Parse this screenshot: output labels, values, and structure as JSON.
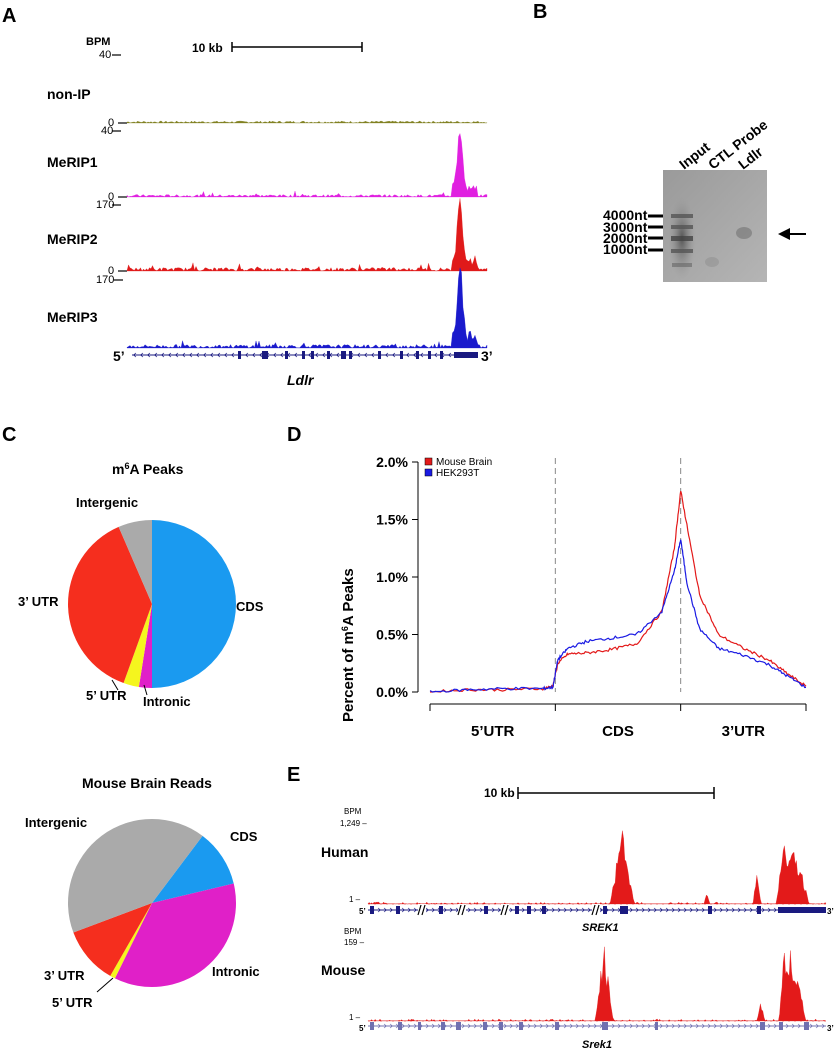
{
  "panels": {
    "A": {
      "letter": "A",
      "bpm_label": "BPM",
      "scale_label": "10 kb",
      "tracks": [
        {
          "name": "non-IP",
          "max": "40",
          "zero": "0",
          "color": "#808020"
        },
        {
          "name": "MeRIP1",
          "max": "40",
          "zero": "0",
          "color": "#e020e0"
        },
        {
          "name": "MeRIP2",
          "max": "170",
          "zero": "0",
          "color": "#e01a1a"
        },
        {
          "name": "MeRIP3",
          "max": "170",
          "zero": "0",
          "color": "#1a1acc"
        }
      ],
      "five_prime": "5’",
      "three_prime": "3’",
      "gene": "Ldlr"
    },
    "B": {
      "letter": "B",
      "lanes": [
        "Input",
        "CTL Probe",
        "Ldlr"
      ],
      "markers": [
        "4000nt",
        "3000nt",
        "2000nt",
        "1000nt"
      ]
    },
    "C": {
      "letter": "C",
      "pies": [
        {
          "title_prefix": "m",
          "title_sup": "6",
          "title_suffix": "A Peaks",
          "slices": [
            {
              "label": "CDS",
              "value": 50,
              "color": "#1a9af0"
            },
            {
              "label": "Intronic",
              "value": 2.5,
              "color": "#e020c8"
            },
            {
              "label": "5’ UTR",
              "value": 3,
              "color": "#f5f51e"
            },
            {
              "label": "3’ UTR",
              "value": 38,
              "color": "#f52e1e"
            },
            {
              "label": "Intergenic",
              "value": 6.5,
              "color": "#aaaaaa"
            }
          ]
        },
        {
          "title": "Mouse Brain Reads",
          "slices": [
            {
              "label": "CDS",
              "value": 11,
              "color": "#1a9af0"
            },
            {
              "label": "Intronic",
              "value": 36,
              "color": "#e020c8"
            },
            {
              "label": "5’ UTR",
              "value": 1,
              "color": "#f5f51e"
            },
            {
              "label": "3’ UTR",
              "value": 11,
              "color": "#f52e1e"
            },
            {
              "label": "Intergenic",
              "value": 41,
              "color": "#aaaaaa"
            }
          ]
        }
      ]
    },
    "D": {
      "letter": "D",
      "ylabel_prefix": "Percent of m",
      "ylabel_sup": "6",
      "ylabel_suffix": "A Peaks"
    },
    "E": {
      "letter": "E",
      "scale_label": "10 kb",
      "tracks": [
        {
          "species": "Human",
          "bpm": "BPM",
          "max": "1,249 –",
          "one": "1 –",
          "gene": "SREK1"
        },
        {
          "species": "Mouse",
          "bpm": "BPM",
          "max": "159 –",
          "one": "1 –",
          "gene": "Srek1"
        }
      ],
      "five_prime": "5’",
      "three_prime": "3’"
    }
  },
  "chart_data": {
    "type": "line",
    "title": "",
    "xlabel": "",
    "ylabel": "Percent of m6A Peaks",
    "ylim": [
      0,
      2.0
    ],
    "yticks": [
      "0.0%",
      "0.5%",
      "1.0%",
      "1.5%",
      "2.0%"
    ],
    "regions": [
      "5’UTR",
      "CDS",
      "3’UTR"
    ],
    "region_boundaries": [
      1,
      2
    ],
    "xlim": [
      0,
      3
    ],
    "grid": false,
    "legend_position": "top-left",
    "series": [
      {
        "name": "Mouse Brain",
        "color": "#e31a1a",
        "x": [
          0,
          0.3,
          0.6,
          0.9,
          0.98,
          1.02,
          1.1,
          1.25,
          1.45,
          1.65,
          1.85,
          1.95,
          2.0,
          2.05,
          2.15,
          2.3,
          2.5,
          2.7,
          2.85,
          3.0
        ],
        "y": [
          0.0,
          0.02,
          0.02,
          0.03,
          0.05,
          0.25,
          0.33,
          0.34,
          0.37,
          0.42,
          0.7,
          1.25,
          1.75,
          1.45,
          0.85,
          0.5,
          0.38,
          0.28,
          0.16,
          0.05
        ]
      },
      {
        "name": "HEK293T",
        "color": "#1a1ae3",
        "x": [
          0,
          0.3,
          0.6,
          0.9,
          0.98,
          1.02,
          1.1,
          1.25,
          1.45,
          1.65,
          1.85,
          1.95,
          2.0,
          2.05,
          2.15,
          2.3,
          2.5,
          2.7,
          2.85,
          3.0
        ],
        "y": [
          0.0,
          0.02,
          0.03,
          0.03,
          0.04,
          0.28,
          0.38,
          0.44,
          0.47,
          0.5,
          0.7,
          1.05,
          1.33,
          0.95,
          0.55,
          0.38,
          0.32,
          0.24,
          0.14,
          0.04
        ]
      }
    ]
  }
}
